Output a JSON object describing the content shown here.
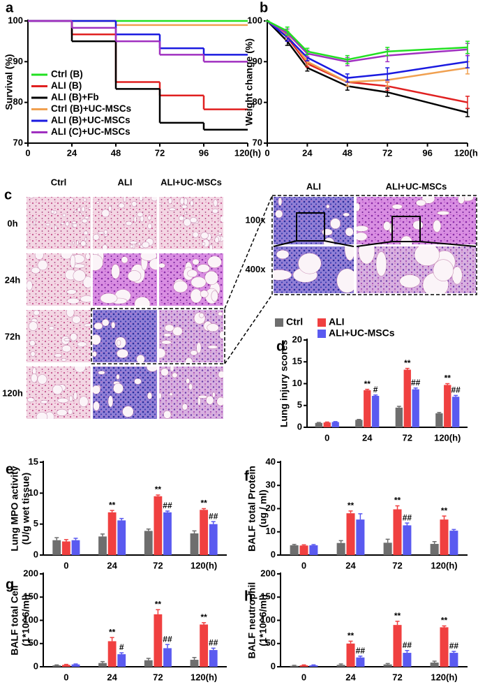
{
  "chart_data": [
    {
      "panel": "a",
      "type": "line",
      "step": true,
      "ylabel": "Survival (%)",
      "xlim": [
        0,
        120
      ],
      "xticks": [
        0,
        24,
        48,
        72,
        96,
        {
          "value": 120,
          "label": "120(h)"
        }
      ],
      "ylim": [
        70,
        100
      ],
      "yticks": [
        70,
        80,
        90,
        100
      ],
      "x": [
        0,
        24,
        48,
        72,
        96
      ],
      "series": [
        {
          "name": "Ctrl (B)",
          "color": "#22e022",
          "values": [
            100,
            100,
            100,
            100,
            100
          ]
        },
        {
          "name": "ALI (B)",
          "color": "#e02020",
          "values": [
            100,
            96.7,
            85,
            81.7,
            78.3
          ]
        },
        {
          "name": "ALI (B)+Fb",
          "color": "#000000",
          "values": [
            100,
            95,
            83.3,
            75,
            73.3
          ]
        },
        {
          "name": "Ctrl (B)+UC-MSCs",
          "color": "#f0a050",
          "values": [
            100,
            100,
            99,
            99,
            99
          ]
        },
        {
          "name": "ALI (B)+UC-MSCs",
          "color": "#1a1ae0",
          "values": [
            100,
            100,
            96.7,
            93.3,
            91.7
          ]
        },
        {
          "name": "ALI (C)+UC-MSCs",
          "color": "#a030c0",
          "values": [
            100,
            98.3,
            95,
            91.7,
            90
          ]
        }
      ]
    },
    {
      "panel": "b",
      "type": "line",
      "ylabel": "Weight change (%)",
      "xlim": [
        0,
        120
      ],
      "xticks": [
        0,
        24,
        48,
        72,
        96,
        {
          "value": 120,
          "label": "120(h)"
        }
      ],
      "ylim": [
        70,
        100
      ],
      "yticks": [
        70,
        80,
        90,
        100
      ],
      "x": [
        0,
        12,
        24,
        48,
        72,
        120
      ],
      "series": [
        {
          "color": "#000000",
          "values": [
            100,
            95,
            88.5,
            84,
            82.5,
            77.5
          ],
          "errors": [
            0,
            1,
            0.8,
            1,
            1,
            1
          ]
        },
        {
          "color": "#e02020",
          "values": [
            100,
            96,
            89.5,
            85,
            84,
            80
          ],
          "errors": [
            0,
            1,
            0.8,
            1,
            1,
            1.5
          ]
        },
        {
          "color": "#f0a050",
          "values": [
            100,
            96.5,
            90,
            85,
            85.5,
            88.5
          ],
          "errors": [
            0,
            1,
            0.8,
            1,
            1.5,
            1.5
          ]
        },
        {
          "color": "#1a1ae0",
          "values": [
            100,
            96,
            91,
            86,
            87,
            90
          ],
          "errors": [
            0,
            1,
            0.8,
            1,
            1.5,
            1.5
          ]
        },
        {
          "color": "#a030c0",
          "values": [
            100,
            97,
            92,
            90,
            91.5,
            93
          ],
          "errors": [
            0,
            1,
            0.8,
            1,
            1.5,
            1.5
          ]
        },
        {
          "color": "#22e022",
          "values": [
            100,
            97.5,
            92.5,
            90.5,
            92.5,
            93.5
          ],
          "errors": [
            0,
            1,
            0.8,
            1,
            1,
            1.5
          ]
        }
      ]
    },
    {
      "panel": "d",
      "type": "bar",
      "ylabel": [
        "Lung  injury scores"
      ],
      "categories": [
        "0",
        "24",
        "72",
        "120(h)"
      ],
      "ylim": [
        0,
        20
      ],
      "yticks": [
        0,
        5,
        10,
        15,
        20
      ],
      "series": [
        {
          "name": "Ctrl",
          "color": "#6e6e6e",
          "values": [
            1.0,
            1.7,
            4.5,
            3.2
          ],
          "errors": [
            0.1,
            0.1,
            0.3,
            0.2
          ]
        },
        {
          "name": "ALI",
          "color": "#f04040",
          "values": [
            1.1,
            8.5,
            13.2,
            9.7
          ],
          "errors": [
            0.1,
            0.2,
            0.3,
            0.3
          ],
          "labels": [
            null,
            "**",
            "**",
            "**"
          ]
        },
        {
          "name": "ALI+UC-MSCs",
          "color": "#5a5af0",
          "values": [
            1.2,
            7.2,
            8.7,
            7.0
          ],
          "errors": [
            0.1,
            0.2,
            0.3,
            0.3
          ],
          "labels": [
            null,
            "#",
            "##",
            "##"
          ]
        }
      ]
    },
    {
      "panel": "e",
      "type": "bar",
      "ylabel": [
        "Lung MPO activity",
        "(U/g  wet tissue)"
      ],
      "categories": [
        "0",
        "24",
        "72",
        "120(h)"
      ],
      "ylim": [
        0,
        15
      ],
      "yticks": [
        0,
        5,
        10,
        15
      ],
      "series": [
        {
          "color": "#6e6e6e",
          "values": [
            2.4,
            3.0,
            3.9,
            3.5
          ],
          "errors": [
            0.4,
            0.4,
            0.3,
            0.4
          ]
        },
        {
          "color": "#f04040",
          "values": [
            2.2,
            6.9,
            9.5,
            7.3
          ],
          "errors": [
            0.3,
            0.3,
            0.2,
            0.2
          ],
          "labels": [
            null,
            "**",
            "**",
            "**"
          ]
        },
        {
          "color": "#5a5af0",
          "values": [
            2.4,
            5.6,
            6.9,
            5.0
          ],
          "errors": [
            0.3,
            0.3,
            0.2,
            0.4
          ],
          "labels": [
            null,
            null,
            "##",
            "##"
          ]
        }
      ]
    },
    {
      "panel": "f",
      "type": "bar",
      "ylabel": [
        "BALF total Protein",
        "(ug / ml)"
      ],
      "categories": [
        "0",
        "24",
        "72",
        "120(h)"
      ],
      "ylim": [
        0,
        40
      ],
      "yticks": [
        0,
        10,
        20,
        30,
        40
      ],
      "series": [
        {
          "color": "#6e6e6e",
          "values": [
            4.2,
            5.2,
            5.3,
            4.8
          ],
          "errors": [
            0.4,
            1,
            1.5,
            1
          ]
        },
        {
          "color": "#f04040",
          "values": [
            4.1,
            18.0,
            19.7,
            15.3
          ],
          "errors": [
            0.3,
            1,
            1.5,
            1.5
          ],
          "labels": [
            null,
            "**",
            "**",
            "**"
          ]
        },
        {
          "color": "#5a5af0",
          "values": [
            4.2,
            15.3,
            12.8,
            10.5
          ],
          "errors": [
            0.3,
            2.5,
            1,
            0.5
          ],
          "labels": [
            null,
            null,
            "##",
            null
          ]
        }
      ]
    },
    {
      "panel": "g",
      "type": "bar",
      "ylabel": [
        "BALF total Cell",
        "(1*10^6/ml)"
      ],
      "categories": [
        "0",
        "24",
        "72",
        "120(h)"
      ],
      "ylim": [
        0,
        200
      ],
      "yticks": [
        0,
        50,
        100,
        150,
        200
      ],
      "series": [
        {
          "color": "#6e6e6e",
          "values": [
            3,
            8,
            14,
            15
          ],
          "errors": [
            1,
            3,
            4,
            5
          ]
        },
        {
          "color": "#f04040",
          "values": [
            4,
            55,
            113,
            91
          ],
          "errors": [
            1,
            8,
            10,
            4
          ],
          "labels": [
            null,
            "**",
            "**",
            "**"
          ]
        },
        {
          "color": "#5a5af0",
          "values": [
            5,
            27,
            40,
            36
          ],
          "errors": [
            1,
            3,
            8,
            4
          ],
          "labels": [
            null,
            "#",
            "##",
            "##"
          ]
        }
      ]
    },
    {
      "panel": "h",
      "type": "bar",
      "ylabel": [
        "BALF neutrophil",
        "(1*10^6/ml)"
      ],
      "categories": [
        "0",
        "24",
        "72",
        "120(h)"
      ],
      "ylim": [
        0,
        200
      ],
      "yticks": [
        0,
        50,
        100,
        150,
        200
      ],
      "series": [
        {
          "color": "#6e6e6e",
          "values": [
            2,
            4,
            5,
            9
          ],
          "errors": [
            1,
            2,
            2,
            3
          ]
        },
        {
          "color": "#f04040",
          "values": [
            3,
            50,
            90,
            85
          ],
          "errors": [
            1,
            5,
            8,
            3
          ],
          "labels": [
            null,
            "**",
            "**",
            "**"
          ]
        },
        {
          "color": "#5a5af0",
          "values": [
            3,
            20,
            30,
            30
          ],
          "errors": [
            1,
            3,
            5,
            3
          ],
          "labels": [
            null,
            "##",
            "##",
            "##"
          ]
        }
      ]
    }
  ],
  "histology": {
    "panel": "c",
    "columns": [
      "Ctrl",
      "ALI",
      "ALI+UC-MSCs"
    ],
    "rows": [
      "0h",
      "24h",
      "72h",
      "120h"
    ],
    "zoom_columns": [
      "ALI",
      "ALI+UC-MSCs"
    ],
    "zoom_rows": [
      "100x",
      "400x"
    ]
  }
}
